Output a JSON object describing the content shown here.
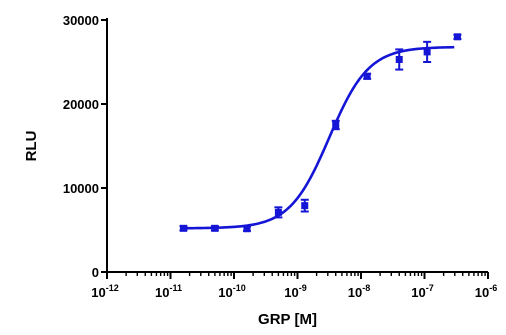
{
  "chart_data": {
    "type": "scatter",
    "xlabel": "GRP [M]",
    "ylabel": "RLU",
    "x_scale": "log",
    "xlim": [
      1e-12,
      1e-06
    ],
    "ylim": [
      0,
      30000
    ],
    "x_ticks": [
      {
        "base": "10",
        "exp": "-12"
      },
      {
        "base": "10",
        "exp": "-11"
      },
      {
        "base": "10",
        "exp": "-10"
      },
      {
        "base": "10",
        "exp": "-9"
      },
      {
        "base": "10",
        "exp": "-8"
      },
      {
        "base": "10",
        "exp": "-7"
      },
      {
        "base": "10",
        "exp": "-6"
      }
    ],
    "y_ticks": [
      "0",
      "10000",
      "20000",
      "30000"
    ],
    "color": "#1515d6",
    "points": [
      {
        "x": 1.6e-11,
        "y": 5200,
        "err": 250
      },
      {
        "x": 5e-11,
        "y": 5200,
        "err": 250
      },
      {
        "x": 1.6e-10,
        "y": 5150,
        "err": 250
      },
      {
        "x": 5e-10,
        "y": 7100,
        "err": 600
      },
      {
        "x": 1.3e-09,
        "y": 7900,
        "err": 700
      },
      {
        "x": 4e-09,
        "y": 17500,
        "err": 500
      },
      {
        "x": 1.25e-08,
        "y": 23300,
        "err": 300
      },
      {
        "x": 4e-08,
        "y": 25300,
        "err": 1200
      },
      {
        "x": 1.1e-07,
        "y": 26200,
        "err": 1200
      },
      {
        "x": 3.3e-07,
        "y": 28000,
        "err": 250
      }
    ],
    "fit": {
      "bottom": 5200,
      "top": 26800,
      "log_ec50": -8.5,
      "hill_slope": 1.4
    }
  }
}
